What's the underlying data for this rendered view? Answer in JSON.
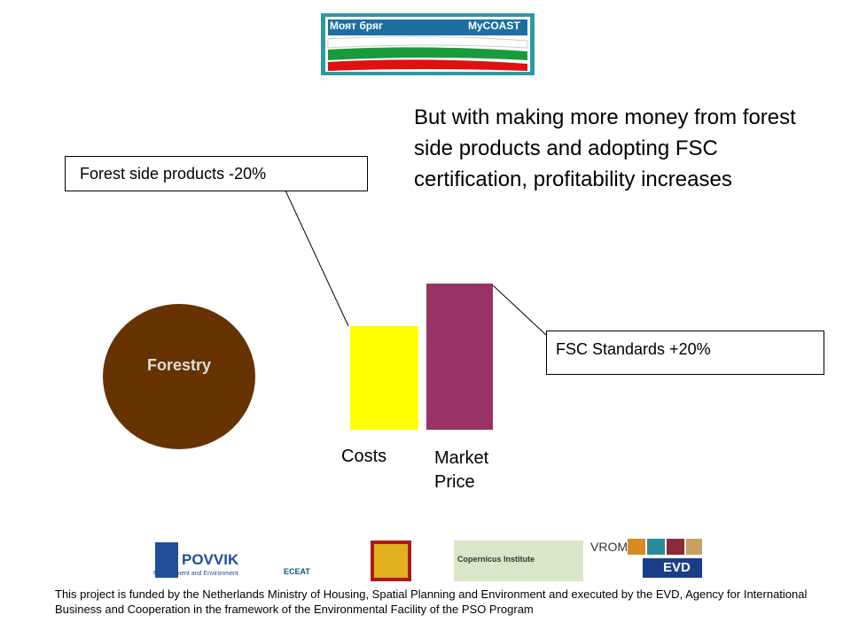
{
  "logo": {
    "left": "Моят бряг",
    "right": "MyCOAST"
  },
  "heading": "But with making more money from forest side products and adopting FSC certification, profitability increases",
  "callouts": {
    "side_products": "Forest side products -20%",
    "fsc": "FSC Standards +20%"
  },
  "circle_label": "Forestry",
  "bar_labels": {
    "costs": "Costs",
    "market_price": "Market Price"
  },
  "sponsors": {
    "povvik": "POVVIK",
    "povvik_sub": "Management and Environment",
    "eceat": "ECEAT",
    "copernicus": "Copernicus Institute",
    "vrom": "VROM",
    "evd": "EVD"
  },
  "footer": "This project is funded by the Netherlands Ministry of Housing, Spatial Planning and Environment and executed by the EVD, Agency for International Business and Cooperation in the framework of the Environmental Facility of the PSO Program"
}
